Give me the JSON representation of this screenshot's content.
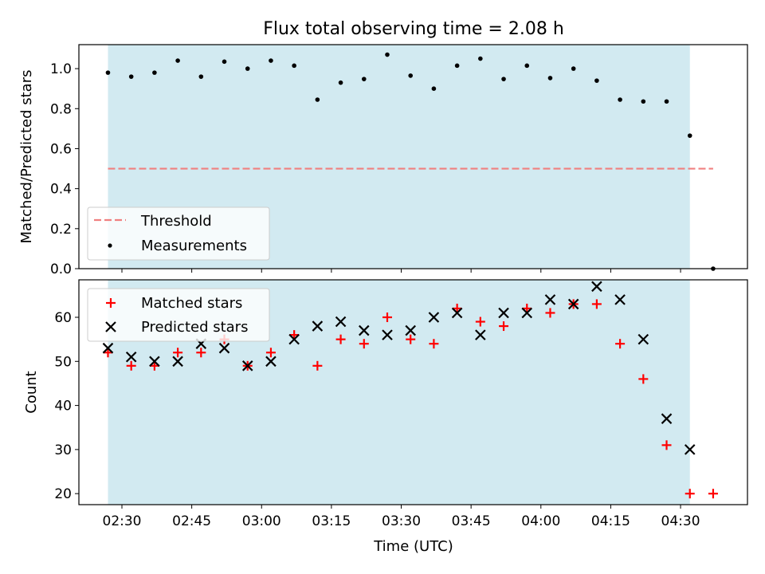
{
  "title": "Flux total observing time = 2.08 h",
  "xlabel": "Time (UTC)",
  "colors": {
    "shade": "#add8e6",
    "threshold": "#f08080",
    "matched": "#ff0000",
    "predicted": "#000000",
    "measurement": "#000000"
  },
  "chart_data": [
    {
      "type": "scatter",
      "ylabel": "Matched/Predicted stars",
      "ylim": [
        0,
        1.12
      ],
      "yticks": [
        "0.0",
        "0.2",
        "0.4",
        "0.6",
        "0.8",
        "1.0"
      ],
      "xticks": [
        "02:30",
        "02:45",
        "03:00",
        "03:15",
        "03:30",
        "03:45",
        "04:00",
        "04:15",
        "04:30"
      ],
      "observing_window": [
        "02:27",
        "04:32"
      ],
      "threshold": {
        "name": "Threshold",
        "value": 0.5,
        "x_range": [
          "02:27",
          "04:37"
        ]
      },
      "legend": {
        "placement": "lower-left",
        "entries": [
          "Threshold",
          "Measurements"
        ]
      },
      "series": [
        {
          "name": "Measurements",
          "x": [
            "02:27",
            "02:32",
            "02:37",
            "02:42",
            "02:47",
            "02:52",
            "02:57",
            "03:02",
            "03:07",
            "03:12",
            "03:17",
            "03:22",
            "03:27",
            "03:32",
            "03:37",
            "03:42",
            "03:47",
            "03:52",
            "03:57",
            "04:02",
            "04:07",
            "04:12",
            "04:17",
            "04:22",
            "04:27",
            "04:32",
            "04:37"
          ],
          "y": [
            0.98,
            0.96,
            0.98,
            1.04,
            0.96,
            1.035,
            1.0,
            1.04,
            1.015,
            0.845,
            0.93,
            0.948,
            1.07,
            0.965,
            0.9,
            1.015,
            1.05,
            0.948,
            1.015,
            0.953,
            1.0,
            0.94,
            0.845,
            0.836,
            0.836,
            0.665,
            0.0
          ]
        }
      ]
    },
    {
      "type": "scatter",
      "ylabel": "Count",
      "ylim": [
        17.5,
        68.5
      ],
      "yticks": [
        "20",
        "30",
        "40",
        "50",
        "60"
      ],
      "xticks": [
        "02:30",
        "02:45",
        "03:00",
        "03:15",
        "03:30",
        "03:45",
        "04:00",
        "04:15",
        "04:30"
      ],
      "observing_window": [
        "02:27",
        "04:32"
      ],
      "legend": {
        "placement": "upper-left",
        "entries": [
          "Matched stars",
          "Predicted stars"
        ]
      },
      "series": [
        {
          "name": "Matched stars",
          "marker": "plus",
          "x": [
            "02:27",
            "02:32",
            "02:37",
            "02:42",
            "02:47",
            "02:52",
            "02:57",
            "03:02",
            "03:07",
            "03:12",
            "03:17",
            "03:22",
            "03:27",
            "03:32",
            "03:37",
            "03:42",
            "03:47",
            "03:52",
            "03:57",
            "04:02",
            "04:07",
            "04:12",
            "04:17",
            "04:22",
            "04:27",
            "04:32",
            "04:37"
          ],
          "y": [
            52,
            49,
            49,
            52,
            52,
            55,
            49,
            52,
            56,
            49,
            55,
            54,
            60,
            55,
            54,
            62,
            59,
            58,
            62,
            61,
            63,
            63,
            54,
            46,
            31,
            20,
            20
          ]
        },
        {
          "name": "Predicted stars",
          "marker": "x",
          "x": [
            "02:27",
            "02:32",
            "02:37",
            "02:42",
            "02:47",
            "02:52",
            "02:57",
            "03:02",
            "03:07",
            "03:12",
            "03:17",
            "03:22",
            "03:27",
            "03:32",
            "03:37",
            "03:42",
            "03:47",
            "03:52",
            "03:57",
            "04:02",
            "04:07",
            "04:12",
            "04:17",
            "04:22",
            "04:27",
            "04:32"
          ],
          "y": [
            53,
            51,
            50,
            50,
            54,
            53,
            49,
            50,
            55,
            58,
            59,
            57,
            56,
            57,
            60,
            61,
            56,
            61,
            61,
            64,
            63,
            67,
            64,
            55,
            37,
            30
          ]
        }
      ]
    }
  ]
}
